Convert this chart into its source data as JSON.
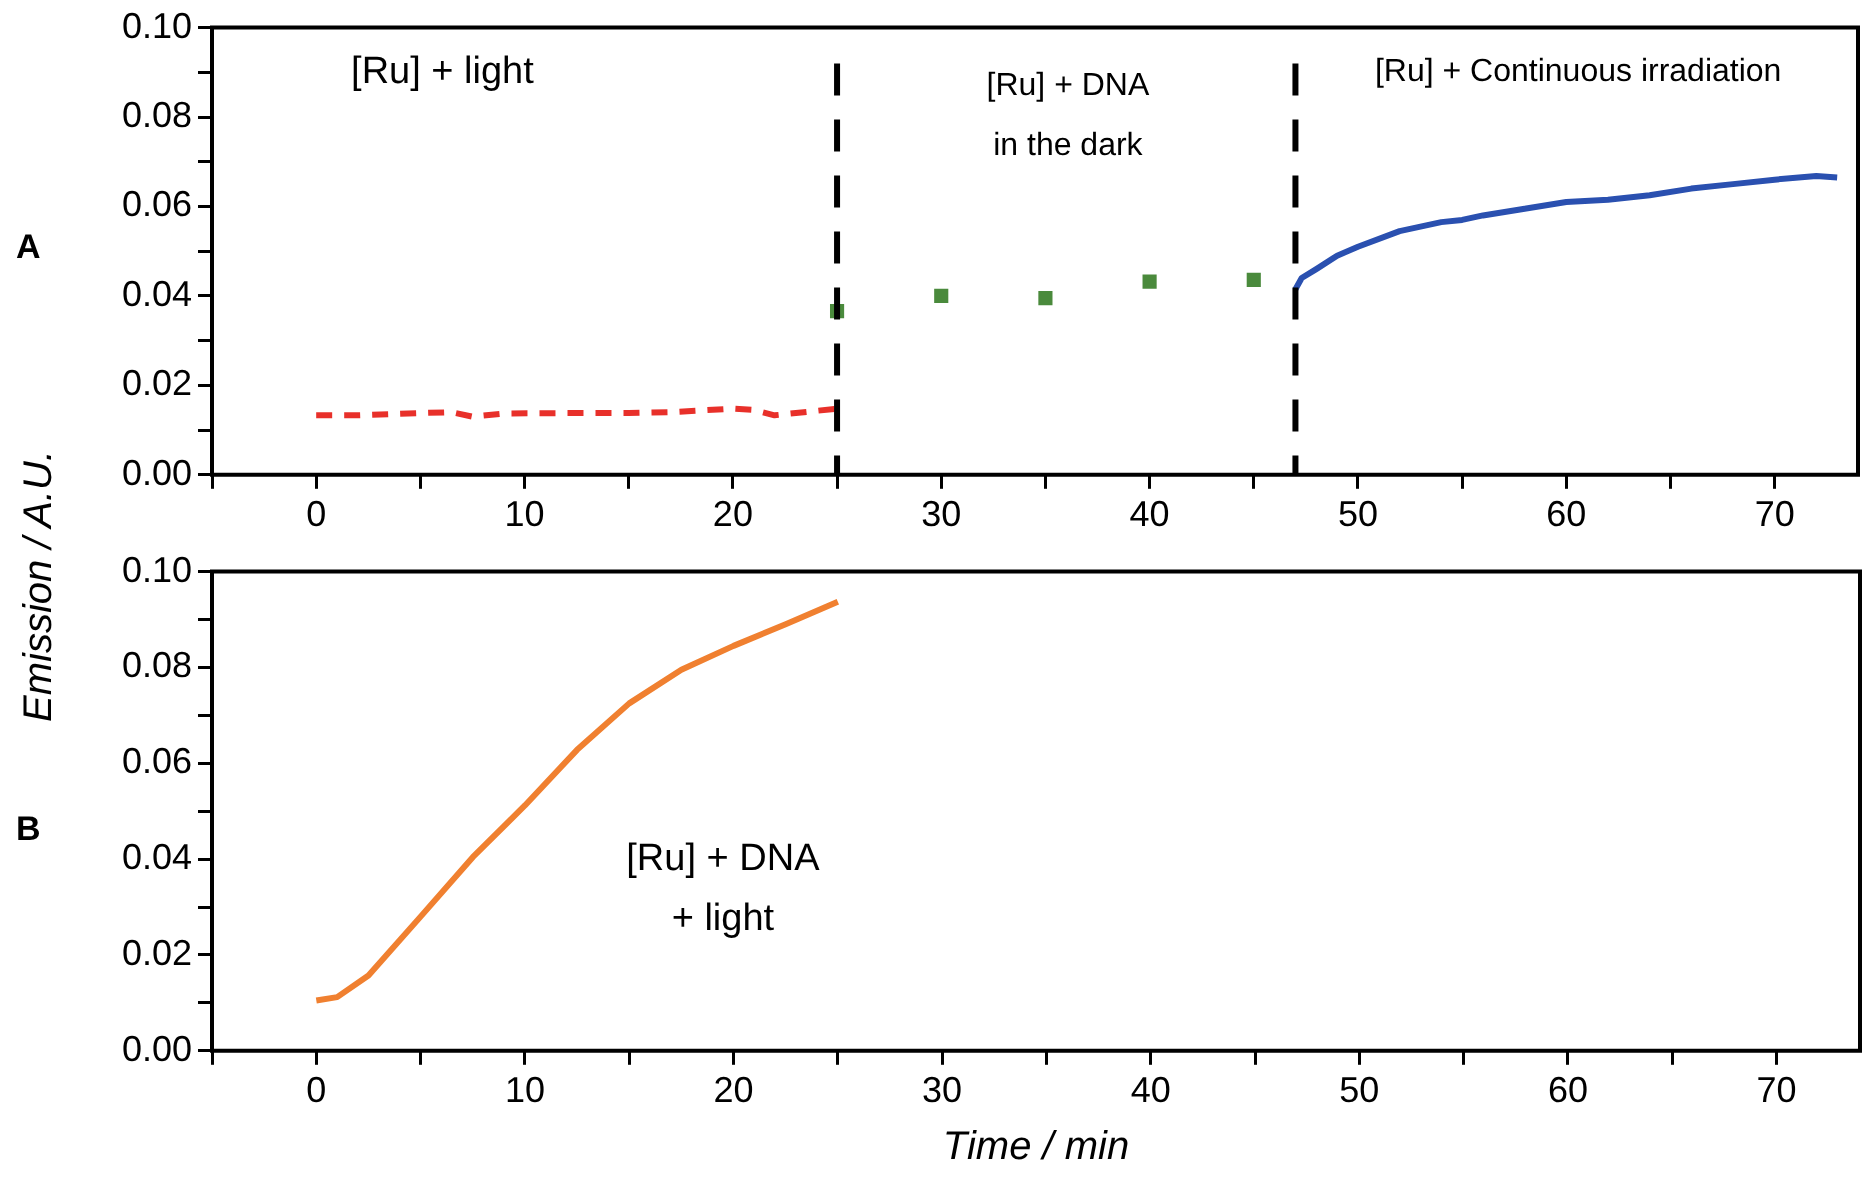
{
  "chart_data": [
    {
      "type": "line",
      "title": "A",
      "ylabel": "Emission / A.U.",
      "xlim": [
        -5,
        74
      ],
      "ylim": [
        0,
        0.1
      ],
      "xticks": [
        {
          "value": -5,
          "label": null
        },
        0,
        {
          "value": 5,
          "label": null
        },
        10,
        {
          "value": 15,
          "label": null
        },
        20,
        {
          "value": 25,
          "label": null
        },
        30,
        {
          "value": 35,
          "label": null
        },
        40,
        {
          "value": 45,
          "label": null
        },
        50,
        {
          "value": 55,
          "label": null
        },
        60,
        {
          "value": 65,
          "label": null
        },
        70
      ],
      "yticks": [
        {
          "value": 0,
          "label": "0.00"
        },
        {
          "value": 0.01,
          "label": null
        },
        {
          "value": 0.02,
          "label": "0.02"
        },
        {
          "value": 0.03,
          "label": null
        },
        {
          "value": 0.04,
          "label": "0.04"
        },
        {
          "value": 0.05,
          "label": null
        },
        {
          "value": 0.06,
          "label": "0.06"
        },
        {
          "value": 0.07,
          "label": null
        },
        {
          "value": 0.08,
          "label": "0.08"
        },
        {
          "value": 0.09,
          "label": null
        },
        {
          "value": 0.1,
          "label": "0.10"
        }
      ],
      "grid": false,
      "legend": false,
      "series": [
        {
          "type": "line",
          "color": "#e8302a",
          "line_style": "dashed",
          "marker": "none",
          "x": [
            0,
            2,
            5,
            6.5,
            7.5,
            9,
            12,
            15,
            17,
            20,
            21,
            22,
            25
          ],
          "values": [
            0.0133,
            0.0133,
            0.0138,
            0.014,
            0.013,
            0.0137,
            0.0138,
            0.0138,
            0.014,
            0.0148,
            0.0145,
            0.0133,
            0.0148
          ]
        },
        {
          "type": "scatter",
          "color": "#4a8a3c",
          "marker": "square",
          "x": [
            25,
            30,
            35,
            40,
            45
          ],
          "values": [
            0.0366,
            0.04,
            0.0395,
            0.0432,
            0.0436
          ]
        },
        {
          "type": "line",
          "color": "#2a50b0",
          "line_style": "solid",
          "marker": "none",
          "x": [
            47,
            47.3,
            48,
            49,
            50,
            52,
            54,
            55,
            56,
            58,
            60,
            62,
            64,
            66,
            68,
            70,
            72,
            73
          ],
          "values": [
            0.0415,
            0.044,
            0.046,
            0.049,
            0.051,
            0.0545,
            0.0565,
            0.057,
            0.058,
            0.0595,
            0.061,
            0.0615,
            0.0625,
            0.064,
            0.065,
            0.066,
            0.0668,
            0.0665
          ]
        }
      ],
      "ref_lines": [
        {
          "axis": "x",
          "value": 25,
          "color": "#000000",
          "line_style": "dashed"
        },
        {
          "axis": "x",
          "value": 47,
          "color": "#000000",
          "line_style": "dashed"
        }
      ],
      "annotations": [
        "[Ru] + light",
        "[Ru] + DNA\nin the dark",
        "[Ru] + Continuous irradiation"
      ]
    },
    {
      "type": "line",
      "title": "B",
      "xlabel": "Time / min",
      "xlim": [
        -5,
        74
      ],
      "ylim": [
        0,
        0.1
      ],
      "xticks": [
        {
          "value": -5,
          "label": null
        },
        0,
        {
          "value": 5,
          "label": null
        },
        10,
        {
          "value": 15,
          "label": null
        },
        20,
        {
          "value": 25,
          "label": null
        },
        30,
        {
          "value": 35,
          "label": null
        },
        40,
        {
          "value": 45,
          "label": null
        },
        50,
        {
          "value": 55,
          "label": null
        },
        60,
        {
          "value": 65,
          "label": null
        },
        70
      ],
      "yticks": [
        {
          "value": 0,
          "label": "0.00"
        },
        {
          "value": 0.01,
          "label": null
        },
        {
          "value": 0.02,
          "label": "0.02"
        },
        {
          "value": 0.03,
          "label": null
        },
        {
          "value": 0.04,
          "label": "0.04"
        },
        {
          "value": 0.05,
          "label": null
        },
        {
          "value": 0.06,
          "label": "0.06"
        },
        {
          "value": 0.07,
          "label": null
        },
        {
          "value": 0.08,
          "label": "0.08"
        },
        {
          "value": 0.09,
          "label": null
        },
        {
          "value": 0.1,
          "label": "0.10"
        }
      ],
      "grid": false,
      "legend": false,
      "series": [
        {
          "type": "line",
          "color": "#f08030",
          "line_style": "solid",
          "marker": "none",
          "x": [
            0,
            1,
            2.5,
            5,
            7.5,
            10,
            12.5,
            15,
            17.5,
            20,
            22.5,
            25
          ],
          "values": [
            0.0105,
            0.0112,
            0.0157,
            0.028,
            0.0404,
            0.0512,
            0.0628,
            0.0725,
            0.0795,
            0.0845,
            0.089,
            0.0937
          ]
        }
      ],
      "annotations": [
        "[Ru] + DNA\n+ light"
      ]
    }
  ]
}
